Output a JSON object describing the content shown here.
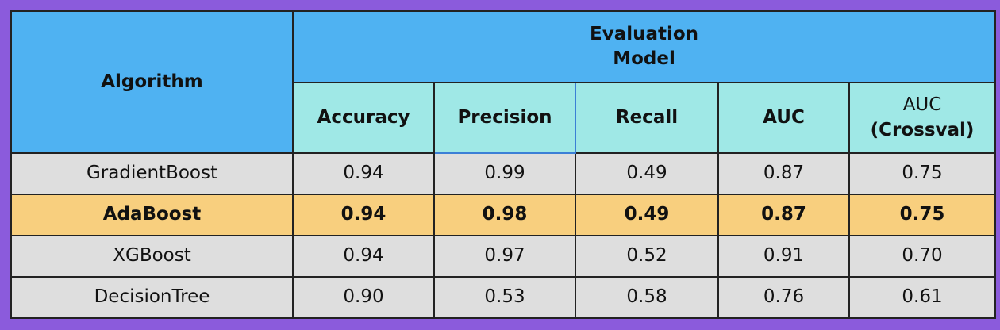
{
  "header": {
    "algorithm": "Algorithm",
    "group_line1": "Evaluation",
    "group_line2": "Model",
    "columns": {
      "accuracy": "Accuracy",
      "precision": "Precision",
      "recall": "Recall",
      "auc": "AUC",
      "auc_cv_line1": "AUC",
      "auc_cv_line2": "(Crossval)"
    }
  },
  "rows": [
    {
      "algorithm": "GradientBoost",
      "accuracy": "0.94",
      "precision": "0.99",
      "recall": "0.49",
      "auc": "0.87",
      "auc_cv": "0.75",
      "highlighted": false
    },
    {
      "algorithm": "AdaBoost",
      "accuracy": "0.94",
      "precision": "0.98",
      "recall": "0.49",
      "auc": "0.87",
      "auc_cv": "0.75",
      "highlighted": true
    },
    {
      "algorithm": "XGBoost",
      "accuracy": "0.94",
      "precision": "0.97",
      "recall": "0.52",
      "auc": "0.91",
      "auc_cv": "0.70",
      "highlighted": false
    },
    {
      "algorithm": "DecisionTree",
      "accuracy": "0.90",
      "precision": "0.53",
      "recall": "0.58",
      "auc": "0.76",
      "auc_cv": "0.61",
      "highlighted": false
    }
  ],
  "colors": {
    "frame": "#8b5bdc",
    "header_blue": "#4fb2f2",
    "header_cyan": "#9fe8e6",
    "row_gray": "#dedede",
    "highlight_row": "#f8cf7e"
  }
}
